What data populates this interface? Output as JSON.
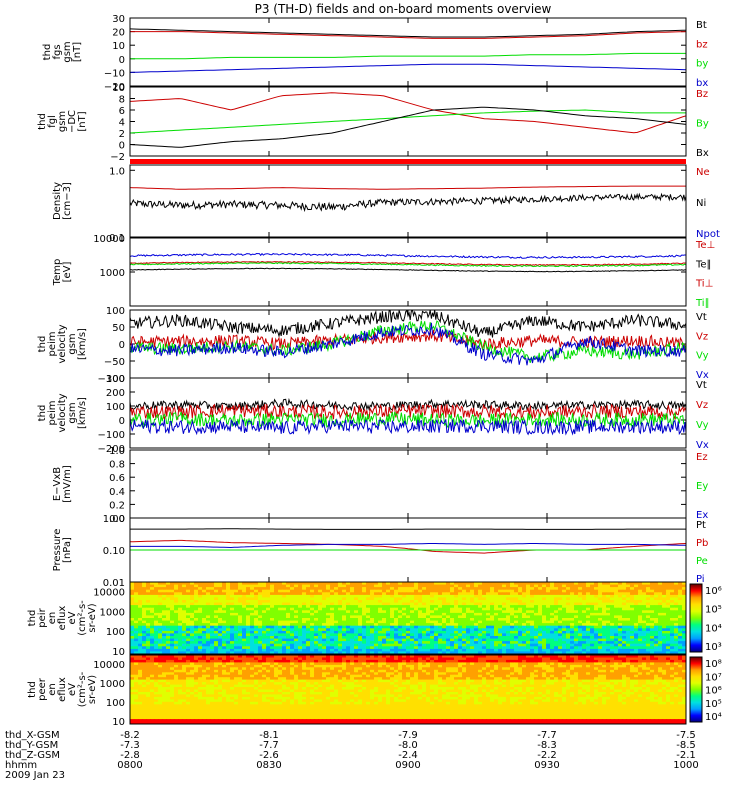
{
  "title": "P3 (TH-D) fields and on-board moments overview",
  "chart_data": [
    {
      "type": "line",
      "ylabel": [
        "thd",
        "fgs",
        "gsm",
        "[nT]"
      ],
      "ylim": [
        -20,
        30
      ],
      "ytick_labels": [
        "30",
        "20",
        "10",
        "0",
        "−10",
        "−20"
      ],
      "series": [
        {
          "name": "Bt",
          "color": "#000000",
          "values": [
            22,
            21,
            20,
            19,
            18,
            17,
            16,
            16,
            17,
            18,
            20,
            21
          ]
        },
        {
          "name": "bz",
          "color": "#cc0000",
          "values": [
            20,
            20,
            19,
            18,
            17,
            16,
            15,
            15,
            16,
            17,
            19,
            20
          ]
        },
        {
          "name": "by",
          "color": "#00dd00",
          "values": [
            0,
            0,
            1,
            1,
            1,
            2,
            2,
            2,
            3,
            3,
            4,
            4
          ]
        },
        {
          "name": "bx",
          "color": "#0000cc",
          "values": [
            -10,
            -9,
            -8,
            -7,
            -6,
            -5,
            -4,
            -4,
            -5,
            -6,
            -7,
            -8
          ]
        }
      ]
    },
    {
      "type": "line",
      "ylabel": [
        "thd",
        "fgl",
        "gsm",
        "−DC",
        "[nT]"
      ],
      "ylim": [
        -2,
        10
      ],
      "ytick_labels": [
        "10",
        "8",
        "6",
        "4",
        "2",
        "0",
        "−2"
      ],
      "series": [
        {
          "name": "Bz",
          "color": "#cc0000",
          "values": [
            7.5,
            8,
            6,
            8.5,
            9,
            8.5,
            6,
            4.5,
            4,
            3,
            2,
            5
          ]
        },
        {
          "name": "By",
          "color": "#00dd00",
          "values": [
            2,
            2.5,
            3,
            3.5,
            4,
            4.5,
            5,
            5.5,
            5.8,
            6,
            5.5,
            5.5
          ]
        },
        {
          "name": "Bx",
          "color": "#000000",
          "values": [
            0,
            -0.5,
            0.5,
            1,
            2,
            4,
            6,
            6.5,
            6,
            5,
            4.5,
            3.5
          ]
        }
      ]
    },
    {
      "type": "line",
      "ylabel": [
        "Density",
        "[cm−3]"
      ],
      "log": true,
      "ylim": [
        0.1,
        1.2
      ],
      "ytick_labels": [
        "1.0",
        "0.1"
      ],
      "series": [
        {
          "name": "Ne",
          "color": "#cc0000",
          "values": [
            0.55,
            0.52,
            0.53,
            0.55,
            0.53,
            0.52,
            0.53,
            0.54,
            0.56,
            0.57,
            0.58,
            0.58
          ]
        },
        {
          "name": "Ni",
          "color": "#000000",
          "values": [
            0.32,
            0.3,
            0.31,
            0.3,
            0.28,
            0.33,
            0.34,
            0.35,
            0.37,
            0.39,
            0.4,
            0.4
          ]
        },
        {
          "name": "Npot",
          "color": "#0000cc",
          "values": []
        }
      ]
    },
    {
      "type": "line",
      "ylabel": [
        "Temp",
        "[eV]"
      ],
      "log": true,
      "ylim": [
        100,
        10000
      ],
      "ytick_labels": [
        "10000",
        "1000"
      ],
      "series": [
        {
          "name": "Te⊥",
          "color": "#cc0000",
          "values": []
        },
        {
          "name": "Te∥",
          "color": "#000000",
          "values": []
        },
        {
          "name": "Ti⊥",
          "color": "#cc0000",
          "values": []
        },
        {
          "name": "Ti∥",
          "color": "#00dd00",
          "values": []
        }
      ]
    },
    {
      "type": "line",
      "ylabel": [
        "thd",
        "peim",
        "velocity",
        "gsm",
        "[km/s]"
      ],
      "ylim": [
        -100,
        100
      ],
      "ytick_labels": [
        "100",
        "50",
        "0",
        "−50",
        "−100"
      ],
      "series": [
        {
          "name": "Vt",
          "color": "#000000",
          "values": [
            60,
            70,
            50,
            40,
            60,
            80,
            85,
            30,
            70,
            50,
            70,
            55
          ]
        },
        {
          "name": "Vz",
          "color": "#cc0000",
          "values": [
            5,
            8,
            10,
            0,
            10,
            20,
            25,
            0,
            10,
            5,
            10,
            0
          ]
        },
        {
          "name": "Vy",
          "color": "#00dd00",
          "values": [
            -10,
            -15,
            -5,
            -20,
            0,
            40,
            55,
            -10,
            -40,
            -20,
            -30,
            -10
          ]
        },
        {
          "name": "Vx",
          "color": "#0000cc",
          "values": [
            -15,
            -20,
            -10,
            -25,
            0,
            35,
            45,
            -30,
            -50,
            10,
            -20,
            -20
          ]
        }
      ]
    },
    {
      "type": "line",
      "ylabel": [
        "thd",
        "peim",
        "velocity",
        "gsm",
        "[km/s]"
      ],
      "ylim": [
        -200,
        300
      ],
      "ytick_labels": [
        "300",
        "200",
        "100",
        "0",
        "−100",
        "−200"
      ],
      "series": [
        {
          "name": "Vt",
          "color": "#000000",
          "values": [
            100,
            110,
            95,
            120,
            105,
            100,
            115,
            110,
            100,
            105,
            110,
            100
          ]
        },
        {
          "name": "Vz",
          "color": "#cc0000",
          "values": [
            60,
            55,
            70,
            60,
            55,
            60,
            65,
            60,
            55,
            60,
            60,
            55
          ]
        },
        {
          "name": "Vy",
          "color": "#00dd00",
          "values": [
            0,
            10,
            -5,
            5,
            0,
            10,
            0,
            -5,
            5,
            0,
            5,
            0
          ]
        },
        {
          "name": "Vx",
          "color": "#0000cc",
          "values": [
            -40,
            -50,
            -45,
            -60,
            -40,
            -50,
            -45,
            -40,
            -55,
            -50,
            -45,
            -50
          ]
        }
      ]
    },
    {
      "type": "line",
      "ylabel": [
        "E−VxB",
        "[mV/m]"
      ],
      "ylim": [
        0,
        1
      ],
      "ytick_labels": [
        "1.0",
        "0.8",
        "0.6",
        "0.4",
        "0.2",
        "0.0"
      ],
      "series": [
        {
          "name": "Ez",
          "color": "#cc0000",
          "values": []
        },
        {
          "name": "Ey",
          "color": "#00dd00",
          "values": []
        },
        {
          "name": "Ex",
          "color": "#0000cc",
          "values": []
        }
      ]
    },
    {
      "type": "line",
      "ylabel": [
        "Pressure",
        "[nPa]"
      ],
      "log": true,
      "ylim": [
        0.01,
        1.0
      ],
      "ytick_labels": [
        "1.00",
        "0.10",
        "0.01"
      ],
      "series": [
        {
          "name": "Pt",
          "color": "#000000",
          "values": [
            0.45,
            0.45,
            0.46,
            0.45,
            0.44,
            0.44,
            0.45,
            0.45,
            0.44,
            0.44,
            0.45,
            0.45
          ]
        },
        {
          "name": "Pb",
          "color": "#cc0000",
          "values": [
            0.18,
            0.2,
            0.17,
            0.16,
            0.15,
            0.13,
            0.09,
            0.08,
            0.1,
            0.1,
            0.13,
            0.16
          ]
        },
        {
          "name": "Pe",
          "color": "#00dd00",
          "values": [
            0.1,
            0.1,
            0.1,
            0.1,
            0.1,
            0.1,
            0.1,
            0.1,
            0.1,
            0.1,
            0.1,
            0.1
          ]
        },
        {
          "name": "Pi",
          "color": "#0000cc",
          "values": [
            0.13,
            0.13,
            0.12,
            0.14,
            0.15,
            0.15,
            0.16,
            0.15,
            0.16,
            0.15,
            0.15,
            0.14
          ]
        }
      ]
    },
    {
      "type": "heatmap",
      "ylabel": [
        "thd",
        "peir",
        "en",
        "eflux",
        "eV",
        "(cm²-s-",
        "sr-eV)"
      ],
      "log": true,
      "ylim": [
        7,
        30000
      ],
      "ytick_labels": [
        "10000",
        "1000",
        "100",
        "10"
      ],
      "colorbar_labels": [
        "10⁶",
        "10⁵",
        "10⁴",
        "10³"
      ]
    },
    {
      "type": "heatmap",
      "ylabel": [
        "thd",
        "peer",
        "en",
        "eflux",
        "eV",
        "(cm²-s-",
        "sr-eV)"
      ],
      "log": true,
      "ylim": [
        7,
        30000
      ],
      "ytick_labels": [
        "10000",
        "1000",
        "100",
        "10"
      ],
      "colorbar_labels": [
        "10⁸",
        "10⁷",
        "10⁶",
        "10⁵",
        "10⁴"
      ]
    }
  ],
  "x_axis": {
    "row_labels": [
      "thd_X-GSM",
      "thd_Y-GSM",
      "thd_Z-GSM",
      "hhmm",
      "2009 Jan 23"
    ],
    "ticks": [
      {
        "x": "-8.2",
        "y": "-7.3",
        "z": "-2.8",
        "t": "0800"
      },
      {
        "x": "-8.1",
        "y": "-7.7",
        "z": "-2.6",
        "t": "0830"
      },
      {
        "x": "-7.9",
        "y": "-8.0",
        "z": "-2.4",
        "t": "0900"
      },
      {
        "x": "-7.7",
        "y": "-8.3",
        "z": "-2.2",
        "t": "0930"
      },
      {
        "x": "-7.5",
        "y": "-8.5",
        "z": "-2.1",
        "t": "1000"
      }
    ]
  }
}
